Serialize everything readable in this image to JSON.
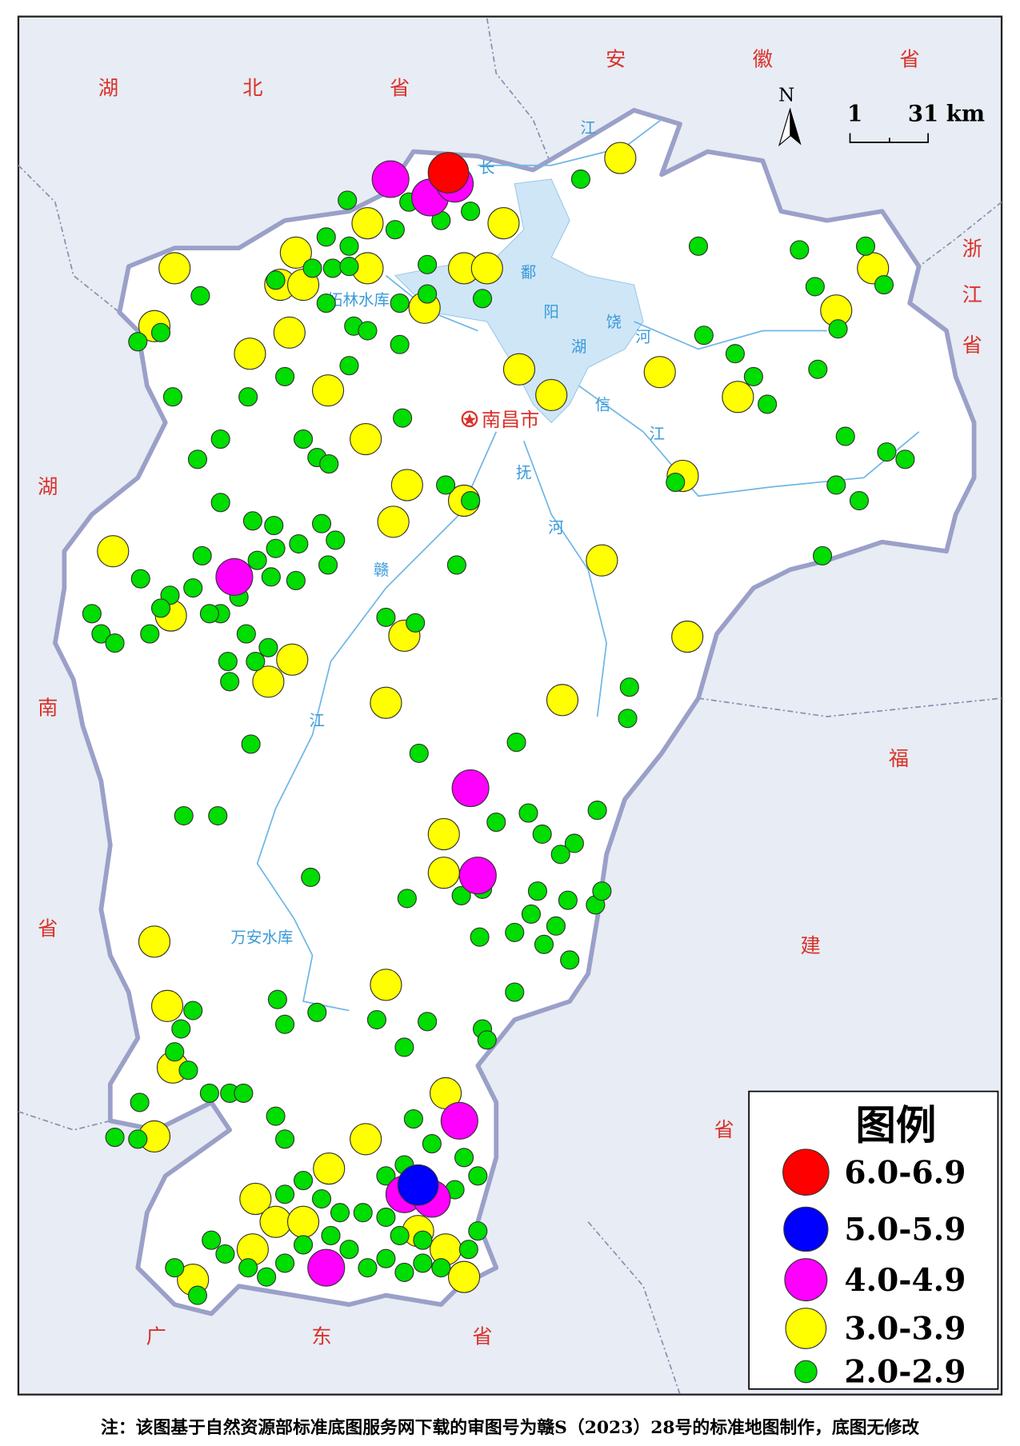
{
  "province_labels": [
    [
      "湖",
      "北",
      "省"
    ],
    [
      "安",
      "徽",
      "省"
    ],
    [
      "浙",
      "江",
      "省"
    ],
    [
      "湖",
      "南",
      "省"
    ],
    [
      "福",
      "建",
      "省"
    ],
    [
      "广",
      "东",
      "省"
    ]
  ],
  "water_labels": [
    "长",
    "江",
    "鄱",
    "阳",
    "湖",
    "饶",
    "河",
    "信",
    "江",
    "抚",
    "河",
    "赣",
    "江",
    "柘林水库",
    "万安水库"
  ],
  "city": "南昌市",
  "north": "N",
  "scale": {
    "start": "1",
    "end": "31 km"
  },
  "legend": {
    "title": "图例",
    "items": [
      {
        "label": "6.0-6.9",
        "color": "#ff0000"
      },
      {
        "label": "5.0-5.9",
        "color": "#0000ff"
      },
      {
        "label": "4.0-4.9",
        "color": "#ff00ff"
      },
      {
        "label": "3.0-3.9",
        "color": "#ffff00"
      },
      {
        "label": "2.0-2.9",
        "color": "#00dd00"
      }
    ]
  },
  "footnote": "注：该图基于自然资源部标准底图服务网下载的审图号为赣S（2023）28号的标准地图制作，底图无修改"
}
